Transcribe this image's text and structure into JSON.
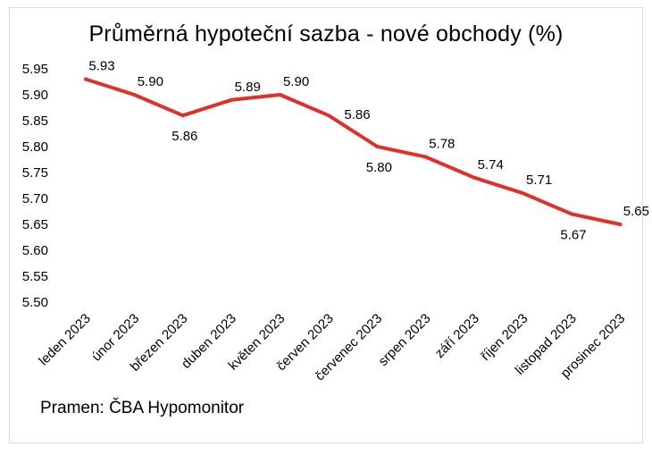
{
  "chart_data": {
    "type": "line",
    "title": "Průměrná hypoteční sazba - nové obchody (%)",
    "xlabel": "",
    "ylabel": "",
    "categories": [
      "leden 2023",
      "únor 2023",
      "březen 2023",
      "duben 2023",
      "květen 2023",
      "červen 2023",
      "červenec 2023",
      "srpen 2023",
      "září 2023",
      "říjen 2023",
      "listopad 2023",
      "prosinec 2023"
    ],
    "series": [
      {
        "values": [
          5.93,
          5.9,
          5.86,
          5.89,
          5.9,
          5.86,
          5.8,
          5.78,
          5.74,
          5.71,
          5.67,
          5.65
        ],
        "color": "#e0302a"
      }
    ],
    "data_labels": [
      "5.93",
      "5.90",
      "5.86",
      "5.89",
      "5.90",
      "5.86",
      "5.80",
      "5.78",
      "5.74",
      "5.71",
      "5.67",
      "5.65"
    ],
    "label_side": [
      "above",
      "above",
      "below",
      "above",
      "above",
      "right-above",
      "below",
      "above",
      "above",
      "above",
      "below",
      "above"
    ],
    "ylim": [
      5.5,
      5.95
    ],
    "yticks": [
      "5.95",
      "5.90",
      "5.85",
      "5.80",
      "5.75",
      "5.70",
      "5.65",
      "5.60",
      "5.55",
      "5.50"
    ],
    "grid": false,
    "legend": "none"
  },
  "source": "Pramen: ČBA Hypomonitor"
}
